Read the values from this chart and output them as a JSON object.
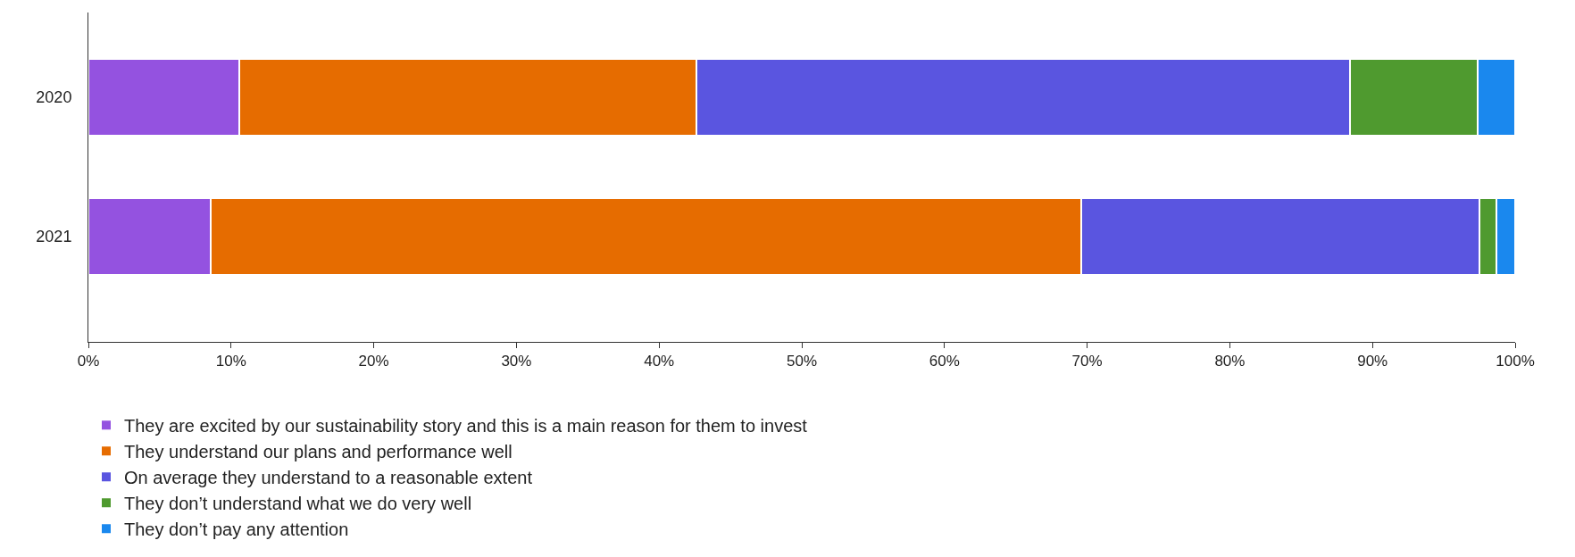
{
  "chart_data": {
    "type": "bar",
    "orientation": "horizontal",
    "stacked": true,
    "categories": [
      "2020",
      "2021"
    ],
    "series": [
      {
        "name": "They are excited by our sustainability story and this is a main reason for them to invest",
        "color": "#9452e0",
        "values": [
          10.6,
          8.6
        ]
      },
      {
        "name": "They understand our plans and performance well",
        "color": "#e66c00",
        "values": [
          32.0,
          61.0
        ]
      },
      {
        "name": "On average they understand to a reasonable extent",
        "color": "#5a55e0",
        "values": [
          45.8,
          27.9
        ]
      },
      {
        "name": "They don’t understand what we do very well",
        "color": "#4f9a2f",
        "values": [
          9.0,
          1.2
        ]
      },
      {
        "name": "They don’t pay any attention",
        "color": "#1a88ee",
        "values": [
          2.6,
          1.3
        ]
      }
    ],
    "xlim": [
      0,
      100
    ],
    "xticks": [
      {
        "value": 0,
        "label": "0%"
      },
      {
        "value": 10,
        "label": "10%"
      },
      {
        "value": 20,
        "label": "20%"
      },
      {
        "value": 30,
        "label": "30%"
      },
      {
        "value": 40,
        "label": "40%"
      },
      {
        "value": 50,
        "label": "50%"
      },
      {
        "value": 60,
        "label": "60%"
      },
      {
        "value": 70,
        "label": "70%"
      },
      {
        "value": 80,
        "label": "80%"
      },
      {
        "value": 90,
        "label": "90%"
      },
      {
        "value": 100,
        "label": "100%"
      }
    ],
    "grid": false,
    "legend": "bottom"
  }
}
